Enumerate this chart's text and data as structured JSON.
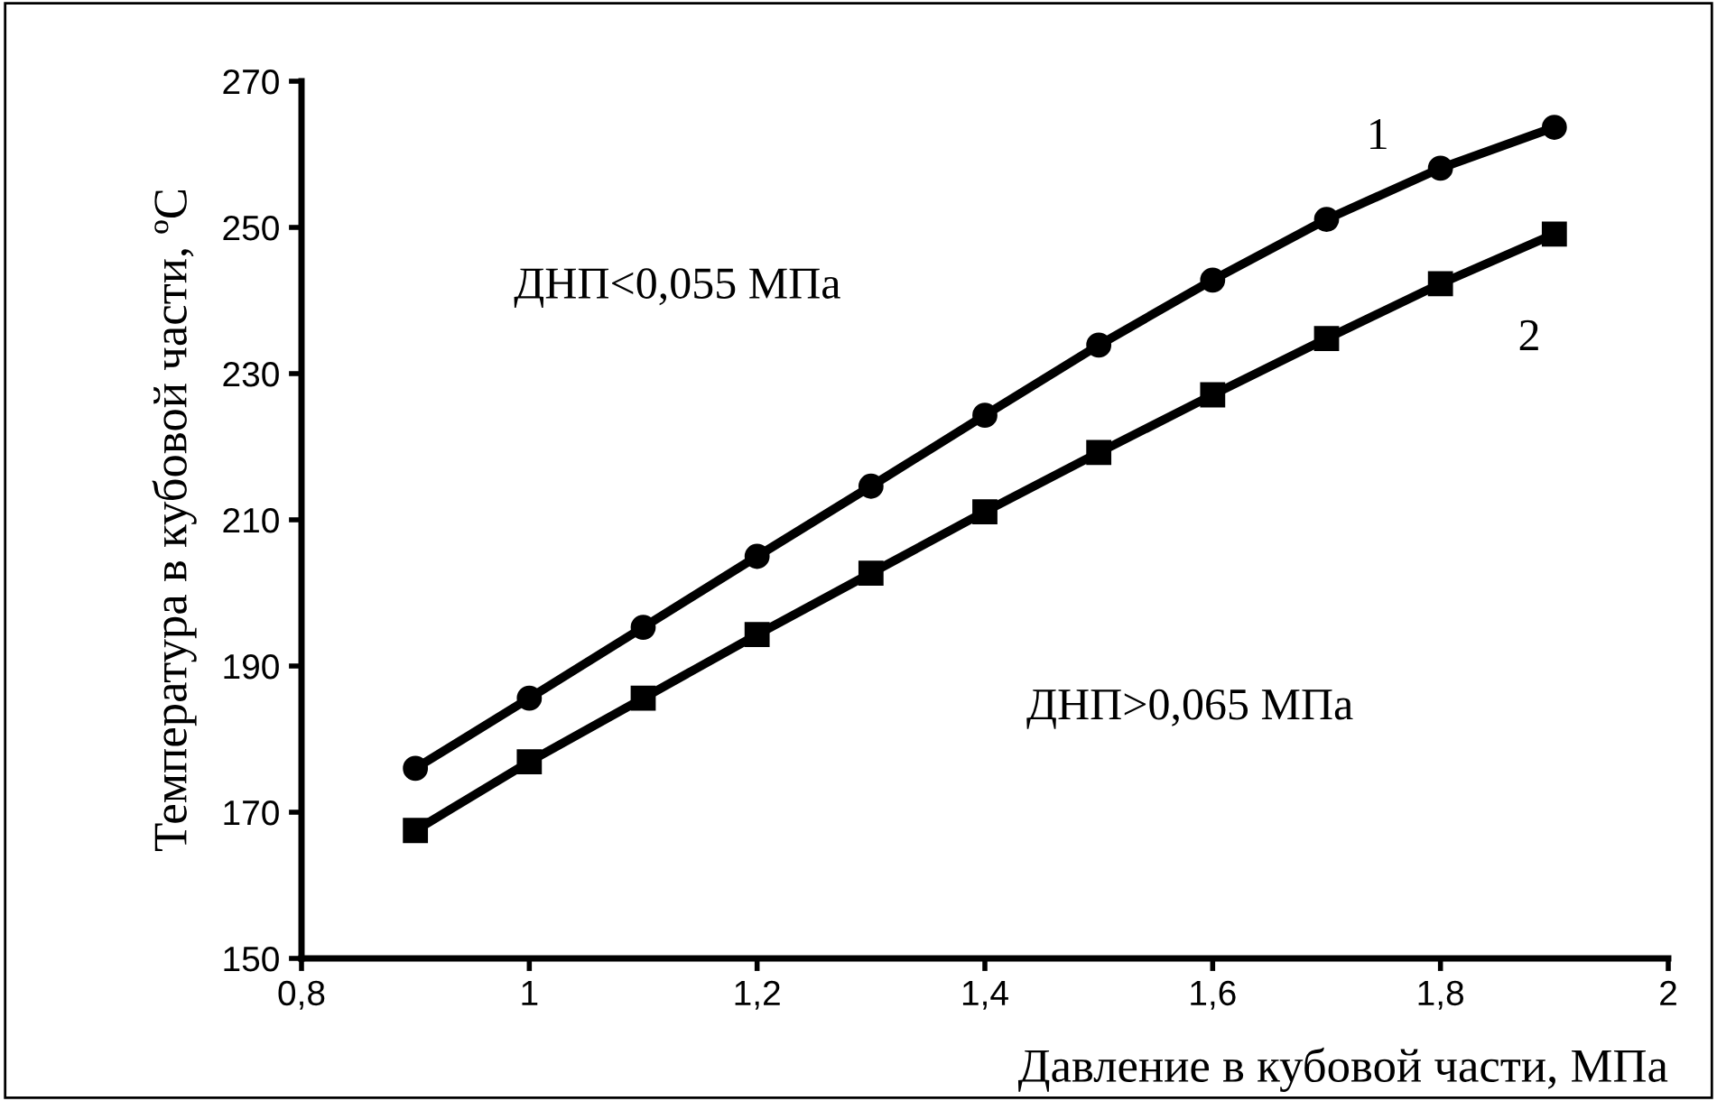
{
  "chart_data": {
    "type": "line",
    "xlabel": "Давление в кубовой части, МПа",
    "ylabel": "Температура в кубовой части, ºC",
    "x": [
      0.9,
      1.0,
      1.1,
      1.2,
      1.3,
      1.4,
      1.5,
      1.6,
      1.7,
      1.8,
      1.9
    ],
    "series": [
      {
        "name": "1",
        "color": "#000000",
        "marker": "circle",
        "values": [
          176.0,
          185.6,
          195.3,
          205.0,
          214.6,
          224.3,
          233.9,
          242.8,
          251.1,
          258.1,
          263.7
        ]
      },
      {
        "name": "2",
        "color": "#000000",
        "marker": "square",
        "values": [
          167.5,
          176.9,
          185.6,
          194.3,
          202.7,
          211.1,
          219.2,
          227.1,
          234.8,
          242.3,
          249.1
        ]
      }
    ],
    "annotations": [
      "ДНП<0,055 МПа",
      "ДНП>0,065 МПа"
    ],
    "xlim": [
      0.8,
      2
    ],
    "xticks": [
      {
        "value": 0.8,
        "label": "0,8"
      },
      1,
      {
        "value": 1.2,
        "label": "1,2"
      },
      {
        "value": 1.4,
        "label": "1,4"
      },
      {
        "value": 1.6,
        "label": "1,6"
      },
      {
        "value": 1.8,
        "label": "1,8"
      },
      2
    ],
    "ylim": [
      150,
      270
    ],
    "yticks": [
      150,
      170,
      190,
      210,
      230,
      250,
      270
    ],
    "grid": false,
    "legend": false,
    "line_style": "solid"
  }
}
